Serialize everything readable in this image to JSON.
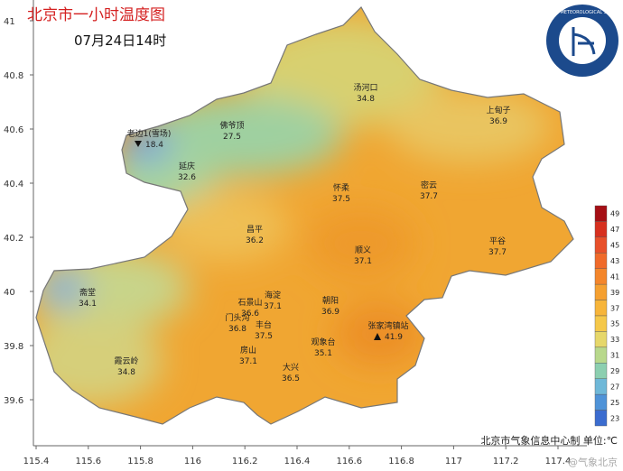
{
  "header": {
    "title": "北京市一小时温度图",
    "subtitle": "07月24日14时"
  },
  "stations": [
    {
      "name": "汤河口",
      "value": 34.8
    },
    {
      "name": "上甸子",
      "value": 36.9
    },
    {
      "name": "佛爷顶",
      "value": 27.5
    },
    {
      "name": "老边1(雪场)",
      "value": 18.4
    },
    {
      "name": "延庆",
      "value": 32.6
    },
    {
      "name": "怀柔",
      "value": 37.5
    },
    {
      "name": "密云",
      "value": 37.7
    },
    {
      "name": "昌平",
      "value": 36.2
    },
    {
      "name": "顺义",
      "value": 37.1
    },
    {
      "name": "平谷",
      "value": 37.7
    },
    {
      "name": "斋堂",
      "value": 34.1
    },
    {
      "name": "海淀",
      "value": 37.1
    },
    {
      "name": "石景山",
      "value": 36.6
    },
    {
      "name": "朝阳",
      "value": 36.9
    },
    {
      "name": "门头沟",
      "value": 36.8
    },
    {
      "name": "丰台",
      "value": 37.5
    },
    {
      "name": "张家湾镇站",
      "value": 41.9
    },
    {
      "name": "霞云岭",
      "value": 34.8
    },
    {
      "name": "房山",
      "value": 37.1
    },
    {
      "name": "观象台",
      "value": 35.1
    },
    {
      "name": "大兴",
      "value": 36.5
    }
  ],
  "axes": {
    "latitude": [
      41,
      40.8,
      40.6,
      40.4,
      40.2,
      40,
      39.8,
      39.6
    ],
    "longitude": [
      115.4,
      115.6,
      115.8,
      116,
      116.2,
      116.4,
      116.6,
      116.8,
      117,
      117.2,
      117.4
    ]
  },
  "legend": {
    "ticks": [
      49,
      47,
      45,
      43,
      41,
      39,
      37,
      35,
      33,
      31,
      29,
      27,
      25,
      23
    ],
    "colors": [
      "#a50f15",
      "#d7301f",
      "#e8502a",
      "#f06a2a",
      "#f4862b",
      "#f5a030",
      "#f7b53a",
      "#f5c84a",
      "#e6d76a",
      "#b8d88c",
      "#8ccfb0",
      "#6fb8d8",
      "#4f93d8",
      "#3b6ccf"
    ]
  },
  "footer": "北京市气象信息中心制 单位:℃",
  "watermark": "@气象北京",
  "logo": "BEIJING METEOROLOGICAL SERVICE"
}
